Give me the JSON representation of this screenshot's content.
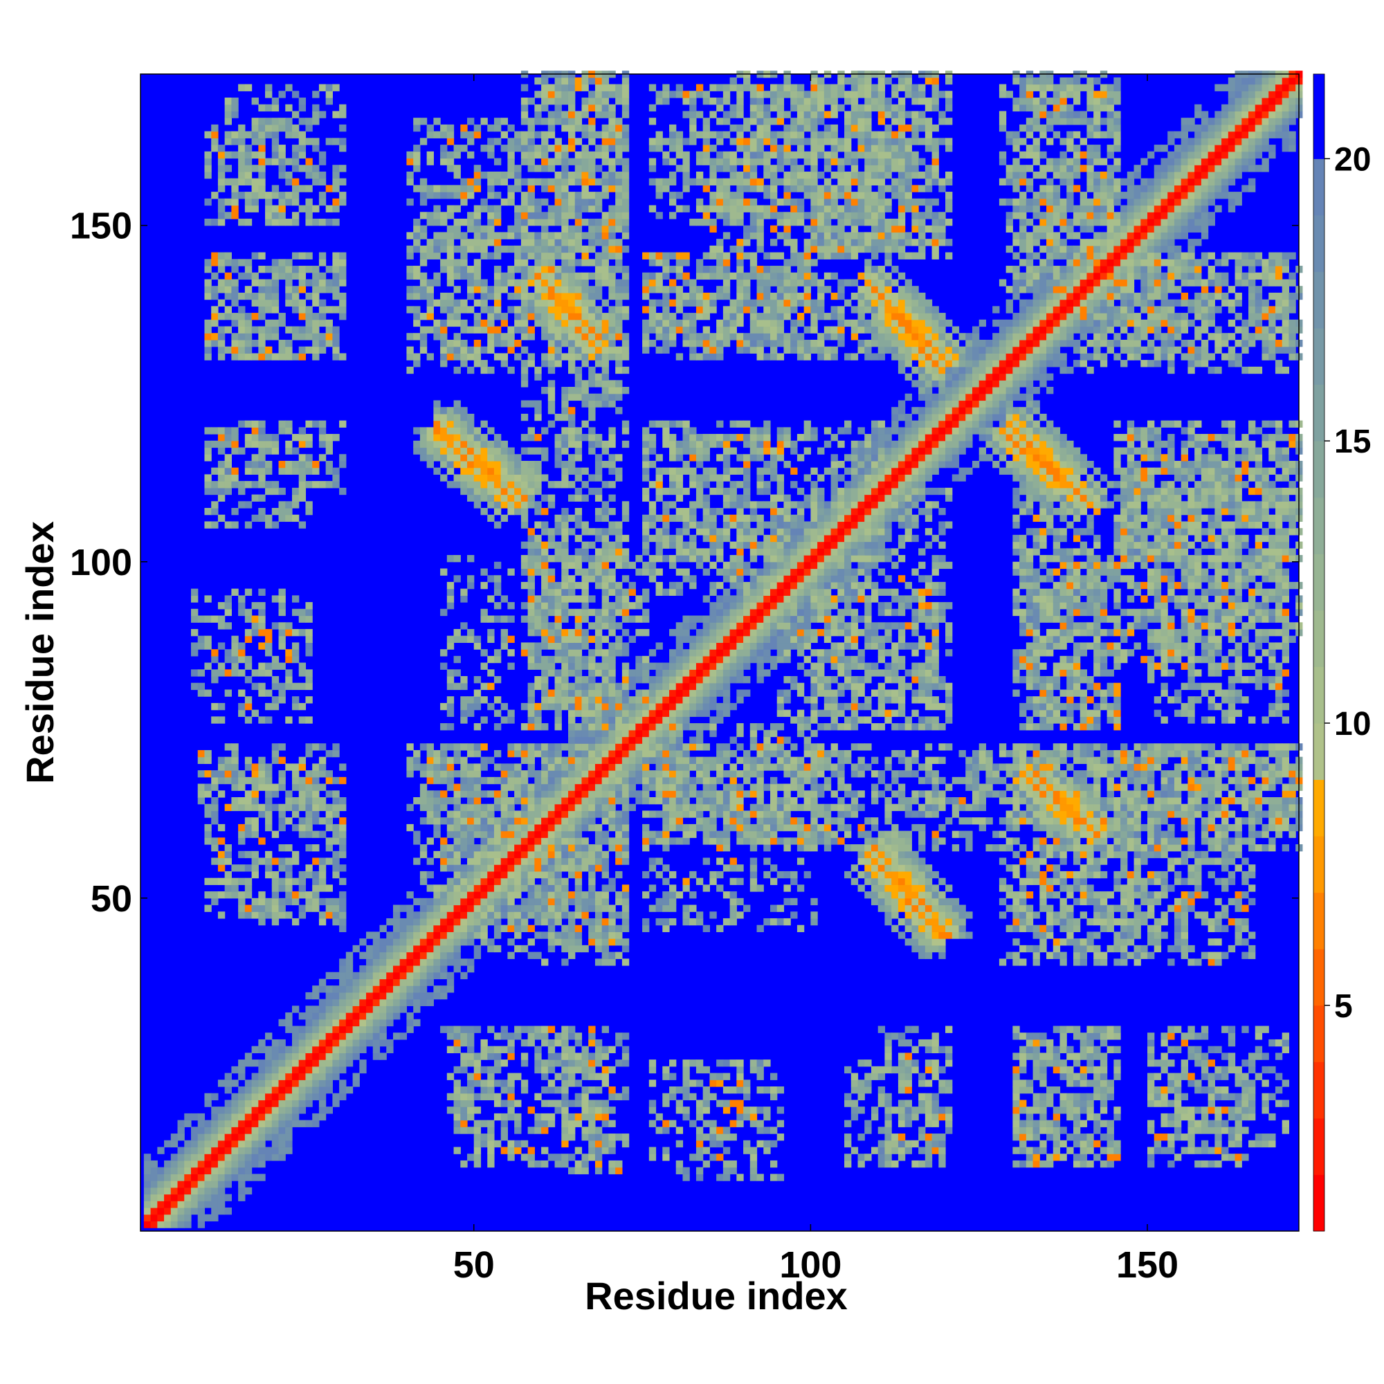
{
  "chart_data": {
    "type": "heatmap",
    "title": "",
    "xlabel": "Residue index",
    "ylabel": "Residue index",
    "n_residues": 172,
    "x_range": [
      1,
      172
    ],
    "y_range": [
      1,
      172
    ],
    "x_ticks": [
      50,
      100,
      150
    ],
    "y_ticks": [
      50,
      100,
      150
    ],
    "x_tick_labels": [
      "50",
      "100",
      "150"
    ],
    "y_tick_labels": [
      "50",
      "100",
      "150"
    ],
    "value_description": "pairwise distance between residues",
    "value_range": [
      1,
      21.5
    ],
    "colorbar": {
      "ticks": [
        5,
        10,
        15,
        20
      ],
      "tick_labels": [
        "5",
        "10",
        "15",
        "20"
      ],
      "levels": [
        {
          "from": 1,
          "to": 2,
          "color": "#ff0000"
        },
        {
          "from": 2,
          "to": 3,
          "color": "#ff1a00"
        },
        {
          "from": 3,
          "to": 4,
          "color": "#ff3300"
        },
        {
          "from": 4,
          "to": 5,
          "color": "#ff4d00"
        },
        {
          "from": 5,
          "to": 6,
          "color": "#ff6600"
        },
        {
          "from": 6,
          "to": 7,
          "color": "#ff8000"
        },
        {
          "from": 7,
          "to": 8,
          "color": "#ff9900"
        },
        {
          "from": 8,
          "to": 9,
          "color": "#ffaa00"
        },
        {
          "from": 9,
          "to": 10,
          "color": "#b0c28a"
        },
        {
          "from": 10,
          "to": 11,
          "color": "#a8bf8c"
        },
        {
          "from": 11,
          "to": 12,
          "color": "#9fb98f"
        },
        {
          "from": 12,
          "to": 13,
          "color": "#97b493"
        },
        {
          "from": 13,
          "to": 14,
          "color": "#8fae97"
        },
        {
          "from": 14,
          "to": 15,
          "color": "#87a89b"
        },
        {
          "from": 15,
          "to": 16,
          "color": "#7fa1a0"
        },
        {
          "from": 16,
          "to": 17,
          "color": "#789aa6"
        },
        {
          "from": 17,
          "to": 18,
          "color": "#7193ab"
        },
        {
          "from": 18,
          "to": 19,
          "color": "#6a8bb1"
        },
        {
          "from": 19,
          "to": 20,
          "color": "#6584b6"
        },
        {
          "from": 20,
          "to": 21.5,
          "color": "#0000ff"
        }
      ]
    },
    "features": {
      "main_diagonal": {
        "from": 1,
        "to": 172,
        "core_distance": 2.5,
        "halo_width": 6
      },
      "antiparallel_contacts": [
        {
          "x": [
            61,
            68
          ],
          "y": [
            139,
            131
          ],
          "distance": 6.5
        },
        {
          "x": [
            110,
            120
          ],
          "y": [
            139,
            129
          ],
          "distance": 6.5
        },
        {
          "x": [
            44,
            56
          ],
          "y": [
            119,
            108
          ],
          "distance": 6.5
        },
        {
          "x": [
            128,
            141
          ],
          "y": [
            119,
            108
          ],
          "distance": 6.5
        },
        {
          "x": [
            109,
            120
          ],
          "y": [
            57,
            44
          ],
          "distance": 6.5
        },
        {
          "x": [
            133,
            142
          ],
          "y": [
            68,
            59
          ],
          "distance": 6.5
        }
      ],
      "contact_clusters": [
        {
          "x": [
            57,
            72
          ],
          "y": [
            140,
            172
          ],
          "density": 0.55
        },
        {
          "x": [
            76,
            100
          ],
          "y": [
            150,
            170
          ],
          "density": 0.5
        },
        {
          "x": [
            100,
            118
          ],
          "y": [
            145,
            172
          ],
          "density": 0.5
        },
        {
          "x": [
            130,
            145
          ],
          "y": [
            140,
            172
          ],
          "density": 0.5
        },
        {
          "x": [
            41,
            72
          ],
          "y": [
            130,
            150
          ],
          "density": 0.45
        },
        {
          "x": [
            75,
            110
          ],
          "y": [
            130,
            142
          ],
          "density": 0.5
        },
        {
          "x": [
            140,
            170
          ],
          "y": [
            128,
            145
          ],
          "density": 0.45
        },
        {
          "x": [
            57,
            72
          ],
          "y": [
            100,
            130
          ],
          "density": 0.5
        },
        {
          "x": [
            75,
            110
          ],
          "y": [
            100,
            120
          ],
          "density": 0.45
        },
        {
          "x": [
            145,
            172
          ],
          "y": [
            100,
            120
          ],
          "density": 0.45
        },
        {
          "x": [
            57,
            75
          ],
          "y": [
            75,
            100
          ],
          "density": 0.5
        },
        {
          "x": [
            95,
            118
          ],
          "y": [
            75,
            95
          ],
          "density": 0.45
        },
        {
          "x": [
            132,
            145
          ],
          "y": [
            75,
            100
          ],
          "density": 0.5
        },
        {
          "x": [
            145,
            172
          ],
          "y": [
            85,
            110
          ],
          "density": 0.45
        },
        {
          "x": [
            40,
            72
          ],
          "y": [
            55,
            72
          ],
          "density": 0.45
        },
        {
          "x": [
            75,
            105
          ],
          "y": [
            58,
            72
          ],
          "density": 0.5
        },
        {
          "x": [
            130,
            172
          ],
          "y": [
            60,
            72
          ],
          "density": 0.45
        },
        {
          "x": [
            45,
            72
          ],
          "y": [
            42,
            58
          ],
          "density": 0.4
        },
        {
          "x": [
            75,
            100
          ],
          "y": [
            45,
            55
          ],
          "density": 0.35
        },
        {
          "x": [
            128,
            165
          ],
          "y": [
            40,
            58
          ],
          "density": 0.45
        },
        {
          "x": [
            12,
            30
          ],
          "y": [
            150,
            170
          ],
          "density": 0.4
        },
        {
          "x": [
            10,
            30
          ],
          "y": [
            130,
            145
          ],
          "density": 0.4
        },
        {
          "x": [
            10,
            30
          ],
          "y": [
            110,
            120
          ],
          "density": 0.4
        },
        {
          "x": [
            8,
            25
          ],
          "y": [
            80,
            95
          ],
          "density": 0.35
        },
        {
          "x": [
            9,
            30
          ],
          "y": [
            63,
            72
          ],
          "density": 0.45
        },
        {
          "x": [
            15,
            30
          ],
          "y": [
            45,
            55
          ],
          "density": 0.3
        },
        {
          "x": [
            47,
            70
          ],
          "y": [
            10,
            30
          ],
          "density": 0.4
        },
        {
          "x": [
            76,
            90
          ],
          "y": [
            10,
            25
          ],
          "density": 0.35
        },
        {
          "x": [
            105,
            120
          ],
          "y": [
            10,
            25
          ],
          "density": 0.45
        },
        {
          "x": [
            130,
            145
          ],
          "y": [
            10,
            30
          ],
          "density": 0.4
        },
        {
          "x": [
            150,
            165
          ],
          "y": [
            10,
            25
          ],
          "density": 0.45
        }
      ]
    }
  }
}
